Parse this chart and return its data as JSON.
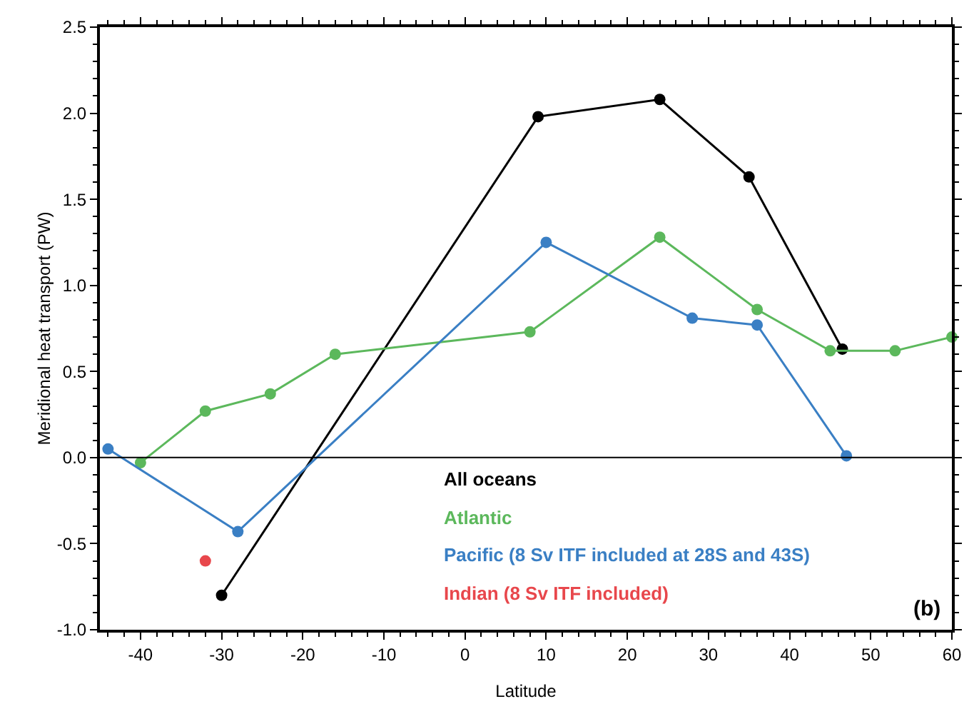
{
  "chart_data": {
    "type": "line",
    "xlabel": "Latitude",
    "ylabel": "Meridional heat transport (PW)",
    "xlim": [
      -45,
      60
    ],
    "xticks": [
      -40,
      -30,
      -20,
      -10,
      0,
      10,
      20,
      30,
      40,
      50,
      60
    ],
    "ylim": [
      -1.0,
      2.5
    ],
    "yticks": [
      {
        "value": -1,
        "label": "-1.0"
      },
      {
        "value": -0.5,
        "label": "-0.5"
      },
      {
        "value": 0,
        "label": "0.0"
      },
      {
        "value": 0.5,
        "label": "0.5"
      },
      {
        "value": 1,
        "label": "1.0"
      },
      {
        "value": 1.5,
        "label": "1.5"
      },
      {
        "value": 2,
        "label": "2.0"
      },
      {
        "value": 2.5,
        "label": "2.5"
      }
    ],
    "grid": false,
    "legend": false,
    "marker": "circle",
    "line_style": "solid",
    "ref_lines": [
      {
        "axis": "y",
        "value": 0,
        "color": "#000000"
      }
    ],
    "annotations": [
      "(b)"
    ],
    "series": [
      {
        "name": "All oceans",
        "color": "#000000",
        "x": [
          -30,
          9,
          24,
          35,
          46.5
        ],
        "values": [
          -0.8,
          1.98,
          2.08,
          1.63,
          0.63
        ]
      },
      {
        "name": "Atlantic",
        "color": "#5cb85c",
        "x": [
          -40,
          -32,
          -24,
          -16,
          8,
          24,
          36,
          45,
          53,
          60
        ],
        "values": [
          -0.03,
          0.27,
          0.37,
          0.6,
          0.73,
          1.28,
          0.86,
          0.62,
          0.62,
          0.7
        ]
      },
      {
        "name": "Pacific (8 Sv ITF included at 28S and 43S)",
        "color": "#3a7fc4",
        "x": [
          -44,
          -28,
          10,
          28,
          36,
          47
        ],
        "values": [
          0.05,
          -0.43,
          1.25,
          0.81,
          0.77,
          0.01
        ]
      },
      {
        "name": "Indian (8 Sv ITF included)",
        "color": "#e8474c",
        "type": "scatter",
        "x": [
          -32
        ],
        "values": [
          -0.6
        ]
      }
    ]
  }
}
